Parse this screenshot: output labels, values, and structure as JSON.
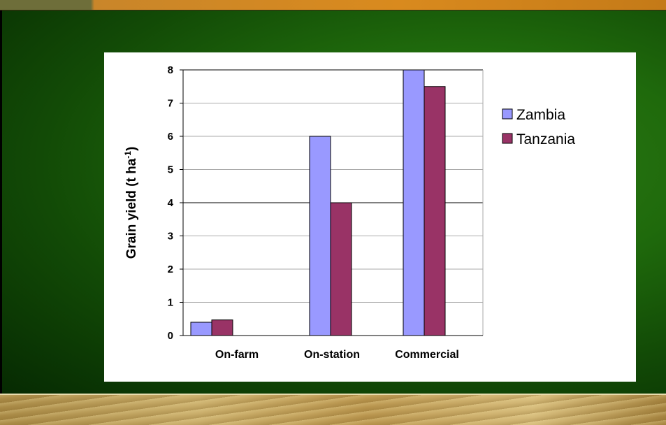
{
  "theme": {
    "zambia_color": "#9999ff",
    "tanzania_color": "#993366"
  },
  "chart_data": {
    "type": "bar",
    "categories": [
      "On-farm",
      "On-station",
      "Commercial"
    ],
    "series": [
      {
        "name": "Zambia",
        "color": "#9999ff",
        "values": [
          0.4,
          6.0,
          8.0
        ]
      },
      {
        "name": "Tanzania",
        "color": "#993366",
        "values": [
          0.47,
          4.0,
          7.5
        ]
      }
    ],
    "title": "",
    "xlabel": "",
    "ylabel": "Grain yield (t ha",
    "ylabel_superscript": "-1",
    "ylabel_close": ")",
    "ylim": [
      0,
      8
    ],
    "yticks": [
      "0",
      "1",
      "2",
      "3",
      "4",
      "5",
      "6",
      "7",
      "8"
    ],
    "grid": "horizontal",
    "legend_position": "right"
  }
}
